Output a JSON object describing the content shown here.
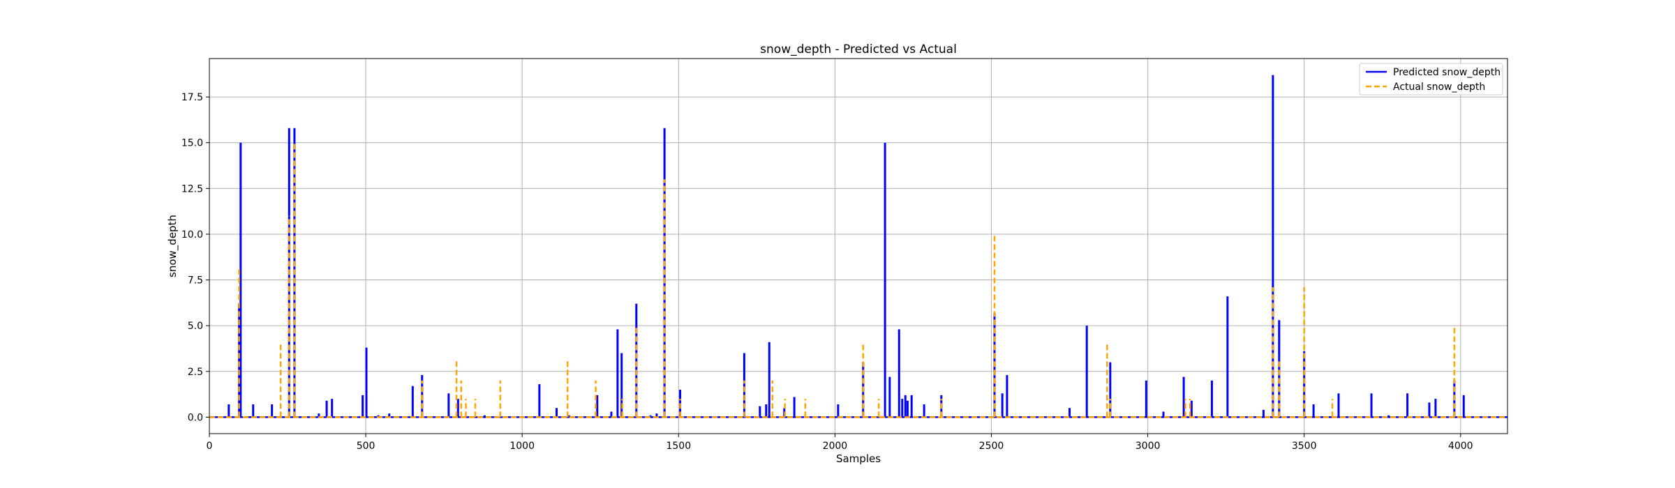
{
  "chart_data": {
    "type": "line",
    "title": "snow_depth - Predicted vs Actual",
    "xlabel": "Samples",
    "ylabel": "snow_depth",
    "xlim": [
      0,
      4150
    ],
    "ylim": [
      -0.9,
      19.6
    ],
    "xticks": [
      0,
      500,
      1000,
      1500,
      2000,
      2500,
      3000,
      3500,
      4000
    ],
    "yticks": [
      0.0,
      2.5,
      5.0,
      7.5,
      10.0,
      12.5,
      15.0,
      17.5
    ],
    "ytick_labels": [
      "0.0",
      "2.5",
      "5.0",
      "7.5",
      "10.0",
      "12.5",
      "15.0",
      "17.5"
    ],
    "grid": true,
    "legend_position": "top-right",
    "baseline": 0,
    "series": [
      {
        "name": "Predicted snow_depth",
        "color": "#0000ff",
        "style": "solid",
        "spikes": [
          [
            62,
            0.7
          ],
          [
            95,
            6.2
          ],
          [
            100,
            15.0
          ],
          [
            140,
            0.7
          ],
          [
            200,
            0.7
          ],
          [
            255,
            15.8
          ],
          [
            272,
            15.8
          ],
          [
            350,
            0.2
          ],
          [
            375,
            0.9
          ],
          [
            392,
            1.0
          ],
          [
            490,
            1.2
          ],
          [
            502,
            3.8
          ],
          [
            540,
            0.1
          ],
          [
            575,
            0.2
          ],
          [
            650,
            1.7
          ],
          [
            680,
            2.3
          ],
          [
            765,
            1.3
          ],
          [
            795,
            1.0
          ],
          [
            880,
            0.1
          ],
          [
            1055,
            1.8
          ],
          [
            1110,
            0.5
          ],
          [
            1150,
            0.1
          ],
          [
            1240,
            1.2
          ],
          [
            1285,
            0.3
          ],
          [
            1305,
            4.8
          ],
          [
            1318,
            3.5
          ],
          [
            1365,
            6.2
          ],
          [
            1410,
            0.1
          ],
          [
            1430,
            0.2
          ],
          [
            1455,
            15.8
          ],
          [
            1505,
            1.5
          ],
          [
            1710,
            3.5
          ],
          [
            1760,
            0.6
          ],
          [
            1780,
            0.7
          ],
          [
            1790,
            4.1
          ],
          [
            1838,
            0.5
          ],
          [
            1870,
            1.1
          ],
          [
            2010,
            0.7
          ],
          [
            2090,
            3.0
          ],
          [
            2160,
            15.0
          ],
          [
            2175,
            2.2
          ],
          [
            2205,
            4.8
          ],
          [
            2215,
            1.0
          ],
          [
            2225,
            1.2
          ],
          [
            2232,
            0.9
          ],
          [
            2245,
            1.2
          ],
          [
            2285,
            0.7
          ],
          [
            2340,
            1.2
          ],
          [
            2510,
            5.7
          ],
          [
            2535,
            1.3
          ],
          [
            2550,
            2.3
          ],
          [
            2750,
            0.5
          ],
          [
            2805,
            5.0
          ],
          [
            2880,
            3.0
          ],
          [
            2995,
            2.0
          ],
          [
            3050,
            0.3
          ],
          [
            3115,
            2.2
          ],
          [
            3140,
            0.9
          ],
          [
            3205,
            2.0
          ],
          [
            3255,
            6.6
          ],
          [
            3370,
            0.4
          ],
          [
            3400,
            18.7
          ],
          [
            3420,
            5.3
          ],
          [
            3500,
            3.6
          ],
          [
            3530,
            0.7
          ],
          [
            3610,
            1.3
          ],
          [
            3715,
            1.3
          ],
          [
            3770,
            0.1
          ],
          [
            3830,
            1.3
          ],
          [
            3900,
            0.8
          ],
          [
            3920,
            1.0
          ],
          [
            3980,
            2.0
          ],
          [
            4010,
            1.2
          ]
        ]
      },
      {
        "name": "Actual snow_depth",
        "color": "#ffa500",
        "style": "dashed",
        "spikes": [
          [
            95,
            8.1
          ],
          [
            228,
            4.1
          ],
          [
            255,
            11.0
          ],
          [
            272,
            15.0
          ],
          [
            680,
            2.0
          ],
          [
            790,
            3.1
          ],
          [
            805,
            2.0
          ],
          [
            820,
            1.0
          ],
          [
            850,
            1.0
          ],
          [
            930,
            2.0
          ],
          [
            1145,
            3.1
          ],
          [
            1235,
            2.0
          ],
          [
            1320,
            1.0
          ],
          [
            1365,
            5.0
          ],
          [
            1455,
            13.0
          ],
          [
            1505,
            1.0
          ],
          [
            1710,
            2.0
          ],
          [
            1800,
            2.0
          ],
          [
            1840,
            1.0
          ],
          [
            1905,
            1.0
          ],
          [
            2090,
            4.1
          ],
          [
            2140,
            1.0
          ],
          [
            2340,
            1.0
          ],
          [
            2510,
            10.0
          ],
          [
            2870,
            4.0
          ],
          [
            2880,
            1.0
          ],
          [
            3120,
            1.0
          ],
          [
            3135,
            1.0
          ],
          [
            3400,
            7.1
          ],
          [
            3420,
            3.1
          ],
          [
            3500,
            7.1
          ],
          [
            3590,
            1.0
          ],
          [
            3980,
            5.0
          ]
        ]
      }
    ]
  }
}
